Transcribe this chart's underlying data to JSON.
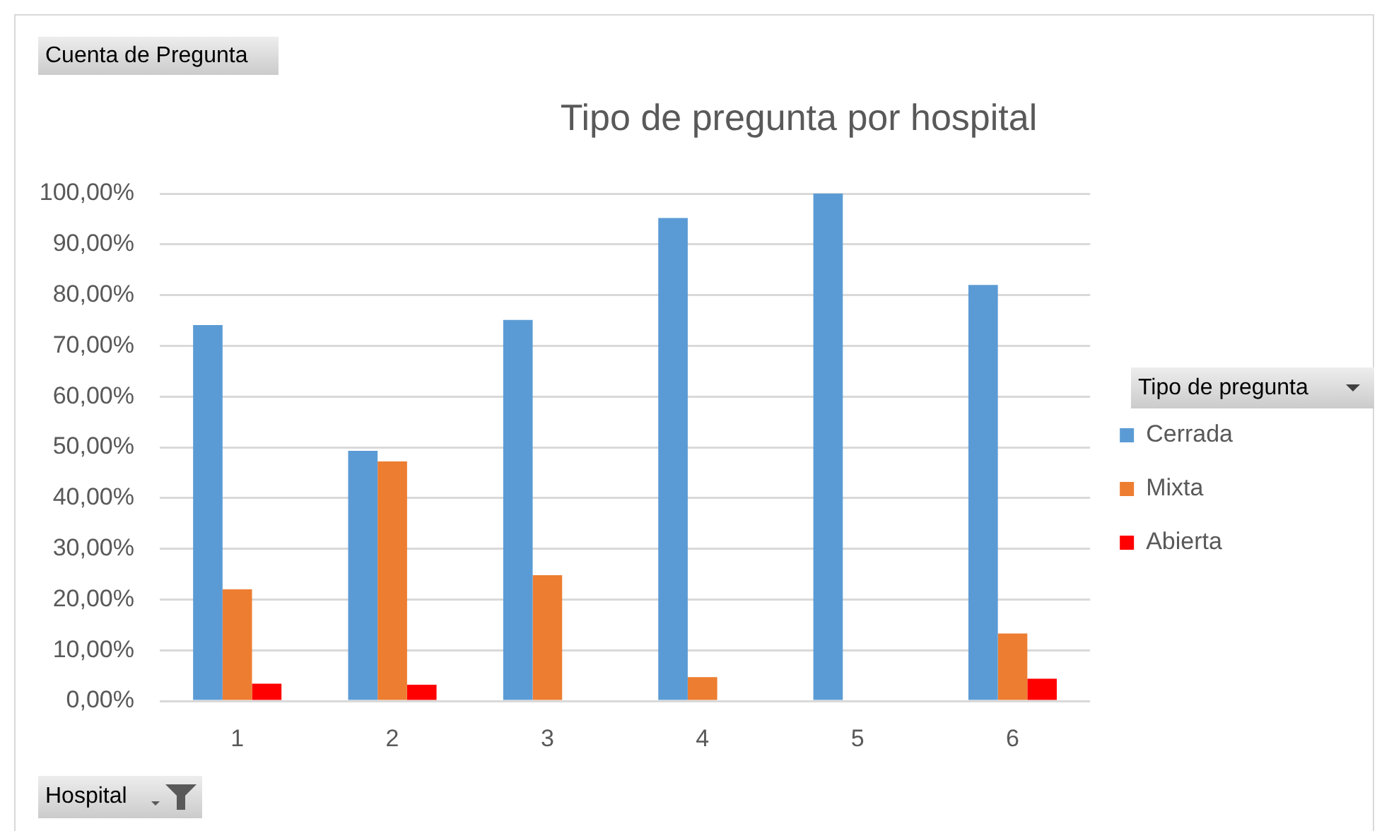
{
  "chart_data": {
    "type": "bar",
    "title": "Tipo de pregunta por hospital",
    "ylabel": "Cuenta de Pregunta",
    "xlabel": "Hospital",
    "legend_title": "Tipo de pregunta",
    "categories": [
      "1",
      "2",
      "3",
      "4",
      "5",
      "6"
    ],
    "series": [
      {
        "name": "Cerrada",
        "color": "#5b9bd5",
        "values": [
          74.1,
          49.3,
          75.1,
          95.2,
          100,
          82.0
        ]
      },
      {
        "name": "Mixta",
        "color": "#ed7d31",
        "values": [
          22.0,
          47.2,
          24.8,
          4.7,
          null,
          13.3
        ]
      },
      {
        "name": "Abierta",
        "color": "#ff0000",
        "values": [
          3.4,
          3.2,
          null,
          null,
          null,
          4.4
        ]
      }
    ],
    "ylim": [
      0,
      100
    ],
    "yticks": [
      {
        "value": 0,
        "label": "0,00%"
      },
      {
        "value": 10,
        "label": "10,00%"
      },
      {
        "value": 20,
        "label": "20,00%"
      },
      {
        "value": 30,
        "label": "30,00%"
      },
      {
        "value": 40,
        "label": "40,00%"
      },
      {
        "value": 50,
        "label": "50,00%"
      },
      {
        "value": 60,
        "label": "60,00%"
      },
      {
        "value": 70,
        "label": "70,00%"
      },
      {
        "value": 80,
        "label": "80,00%"
      },
      {
        "value": 90,
        "label": "90,00%"
      },
      {
        "value": 100,
        "label": "100,00%"
      }
    ],
    "grid": "y",
    "legend": "right"
  }
}
